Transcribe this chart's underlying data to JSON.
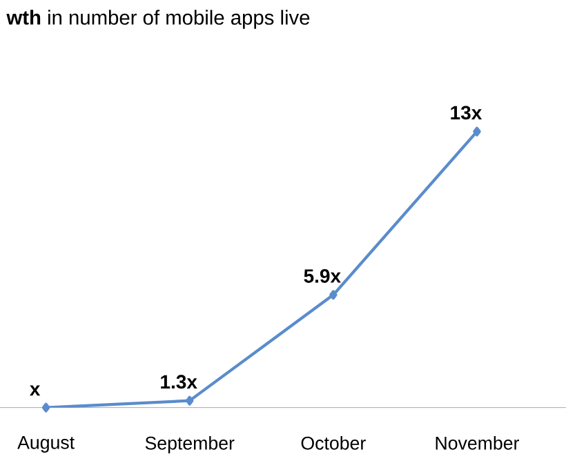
{
  "chart_data": {
    "type": "line",
    "title": "**wth** in number of mobile apps live",
    "categories": [
      "August",
      "September",
      "October",
      "November"
    ],
    "values": [
      1,
      1.3,
      5.9,
      13
    ],
    "value_labels": [
      "x",
      "1.3x",
      "5.9x",
      "13x"
    ],
    "color": "#5a8ccc",
    "marker": "diamond",
    "line_style": "solid",
    "grid": false
  }
}
